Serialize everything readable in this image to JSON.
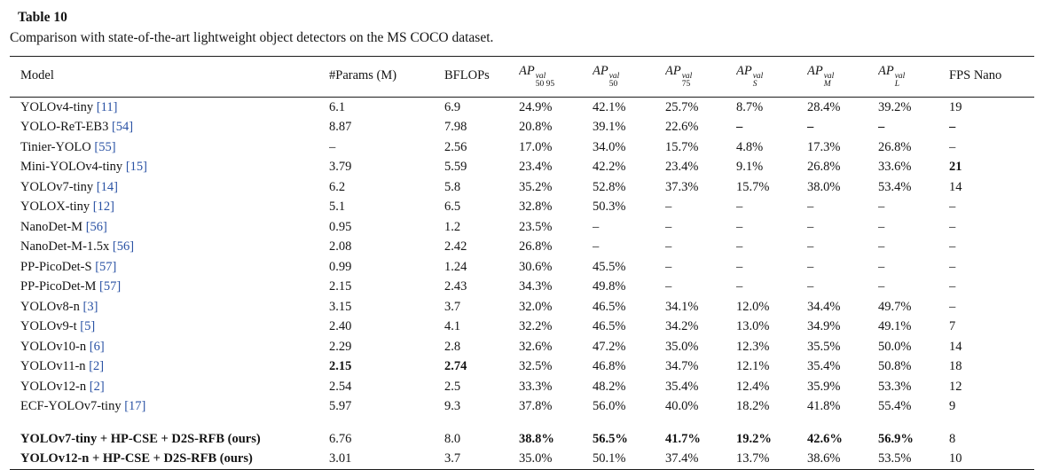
{
  "title": "Table 10",
  "caption": "Comparison with state-of-the-art lightweight object detectors on the MS COCO dataset.",
  "colors": {
    "citation": "#2a52a4",
    "rule": "#1d1d1d"
  },
  "table": {
    "columns": [
      {
        "label": "Model"
      },
      {
        "label": "#Params (M)"
      },
      {
        "label": "BFLOPs"
      },
      {
        "math": "AP",
        "sup": "val",
        "sub": "50 95"
      },
      {
        "math": "AP",
        "sup": "val",
        "sub": "50"
      },
      {
        "math": "AP",
        "sup": "val",
        "sub": "75"
      },
      {
        "math": "AP",
        "sup": "val",
        "sub": "S"
      },
      {
        "math": "AP",
        "sup": "val",
        "sub": "M"
      },
      {
        "math": "AP",
        "sup": "val",
        "sub": "L"
      },
      {
        "label": "FPS Nano"
      }
    ],
    "rows": [
      {
        "model": "YOLOv4-tiny",
        "cite": "[11]",
        "model_bold": false,
        "values": [
          "6.1",
          "6.9",
          "24.9%",
          "42.1%",
          "25.7%",
          "8.7%",
          "28.4%",
          "39.2%",
          "19"
        ],
        "bold": []
      },
      {
        "model": "YOLO-ReT-EB3",
        "cite": "[54]",
        "model_bold": false,
        "values": [
          "8.87",
          "7.98",
          "20.8%",
          "39.1%",
          "22.6%",
          "–",
          "–",
          "–",
          "–"
        ],
        "bold": [
          5,
          6,
          7,
          8
        ]
      },
      {
        "model": "Tinier-YOLO",
        "cite": "[55]",
        "model_bold": false,
        "values": [
          "–",
          "2.56",
          "17.0%",
          "34.0%",
          "15.7%",
          "4.8%",
          "17.3%",
          "26.8%",
          "–"
        ],
        "bold": []
      },
      {
        "model": "Mini-YOLOv4-tiny",
        "cite": "[15]",
        "model_bold": false,
        "values": [
          "3.79",
          "5.59",
          "23.4%",
          "42.2%",
          "23.4%",
          "9.1%",
          "26.8%",
          "33.6%",
          "21"
        ],
        "bold": [
          8
        ]
      },
      {
        "model": "YOLOv7-tiny",
        "cite": "[14]",
        "model_bold": false,
        "values": [
          "6.2",
          "5.8",
          "35.2%",
          "52.8%",
          "37.3%",
          "15.7%",
          "38.0%",
          "53.4%",
          "14"
        ],
        "bold": []
      },
      {
        "model": "YOLOX-tiny",
        "cite": "[12]",
        "model_bold": false,
        "values": [
          "5.1",
          "6.5",
          "32.8%",
          "50.3%",
          "–",
          "–",
          "–",
          "–",
          "–"
        ],
        "bold": []
      },
      {
        "model": "NanoDet-M",
        "cite": "[56]",
        "model_bold": false,
        "values": [
          "0.95",
          "1.2",
          "23.5%",
          "–",
          "–",
          "–",
          "–",
          "–",
          "–"
        ],
        "bold": []
      },
      {
        "model": "NanoDet-M-1.5x",
        "cite": "[56]",
        "model_bold": false,
        "values": [
          "2.08",
          "2.42",
          "26.8%",
          "–",
          "–",
          "–",
          "–",
          "–",
          "–"
        ],
        "bold": []
      },
      {
        "model": "PP-PicoDet-S",
        "cite": "[57]",
        "model_bold": false,
        "values": [
          "0.99",
          "1.24",
          "30.6%",
          "45.5%",
          "–",
          "–",
          "–",
          "–",
          "–"
        ],
        "bold": []
      },
      {
        "model": "PP-PicoDet-M",
        "cite": "[57]",
        "model_bold": false,
        "values": [
          "2.15",
          "2.43",
          "34.3%",
          "49.8%",
          "–",
          "–",
          "–",
          "–",
          "–"
        ],
        "bold": []
      },
      {
        "model": "YOLOv8-n",
        "cite": "[3]",
        "model_bold": false,
        "values": [
          "3.15",
          "3.7",
          "32.0%",
          "46.5%",
          "34.1%",
          "12.0%",
          "34.4%",
          "49.7%",
          "–"
        ],
        "bold": []
      },
      {
        "model": "YOLOv9-t",
        "cite": "[5]",
        "model_bold": false,
        "values": [
          "2.40",
          "4.1",
          "32.2%",
          "46.5%",
          "34.2%",
          "13.0%",
          "34.9%",
          "49.1%",
          "7"
        ],
        "bold": []
      },
      {
        "model": "YOLOv10-n",
        "cite": "[6]",
        "model_bold": false,
        "values": [
          "2.29",
          "2.8",
          "32.6%",
          "47.2%",
          "35.0%",
          "12.3%",
          "35.5%",
          "50.0%",
          "14"
        ],
        "bold": []
      },
      {
        "model": "YOLOv11-n",
        "cite": "[2]",
        "model_bold": false,
        "values": [
          "2.15",
          "2.74",
          "32.5%",
          "46.8%",
          "34.7%",
          "12.1%",
          "35.4%",
          "50.8%",
          "18"
        ],
        "bold": [
          0,
          1
        ]
      },
      {
        "model": "YOLOv12-n",
        "cite": "[2]",
        "model_bold": false,
        "values": [
          "2.54",
          "2.5",
          "33.3%",
          "48.2%",
          "35.4%",
          "12.4%",
          "35.9%",
          "53.3%",
          "12"
        ],
        "bold": []
      },
      {
        "model": "ECF-YOLOv7-tiny",
        "cite": "[17]",
        "model_bold": false,
        "values": [
          "5.97",
          "9.3",
          "37.8%",
          "56.0%",
          "40.0%",
          "18.2%",
          "41.8%",
          "55.4%",
          "9"
        ],
        "bold": []
      }
    ],
    "highlight_rows": [
      {
        "model": "YOLOv7-tiny + HP-CSE + D2S-RFB (ours)",
        "cite": null,
        "model_bold": true,
        "values": [
          "6.76",
          "8.0",
          "38.8%",
          "56.5%",
          "41.7%",
          "19.2%",
          "42.6%",
          "56.9%",
          "8"
        ],
        "bold": [
          2,
          3,
          4,
          5,
          6,
          7
        ]
      },
      {
        "model": "YOLOv12-n + HP-CSE + D2S-RFB (ours)",
        "cite": null,
        "model_bold": true,
        "values": [
          "3.01",
          "3.7",
          "35.0%",
          "50.1%",
          "37.4%",
          "13.7%",
          "38.6%",
          "53.5%",
          "10"
        ],
        "bold": []
      }
    ]
  }
}
